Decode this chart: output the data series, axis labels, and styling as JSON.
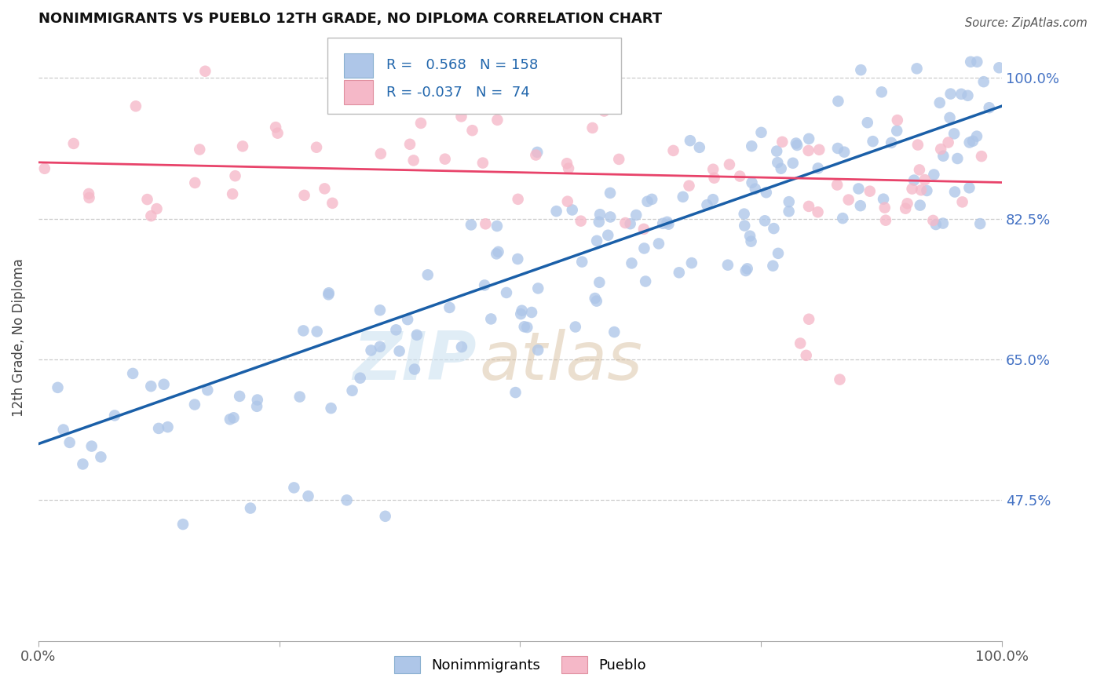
{
  "title": "NONIMMIGRANTS VS PUEBLO 12TH GRADE, NO DIPLOMA CORRELATION CHART",
  "source_text": "Source: ZipAtlas.com",
  "ylabel": "12th Grade, No Diploma",
  "legend_nonimm": "Nonimmigrants",
  "legend_pueblo": "Pueblo",
  "r_nonimm": 0.568,
  "n_nonimm": 158,
  "r_pueblo": -0.037,
  "n_pueblo": 74,
  "blue_fill": "#aec6e8",
  "pink_fill": "#f5b8c8",
  "blue_line": "#1a5fa8",
  "pink_line": "#e8436a",
  "grid_color": "#cccccc",
  "right_tick_color": "#4472c4",
  "xlim": [
    0,
    1
  ],
  "ylim": [
    0.3,
    1.055
  ],
  "yticks": [
    0.475,
    0.65,
    0.825,
    1.0
  ],
  "ytick_labels": [
    "47.5%",
    "65.0%",
    "82.5%",
    "100.0%"
  ],
  "xticks": [
    0.0,
    0.25,
    0.5,
    0.75,
    1.0
  ],
  "xtick_labels": [
    "0.0%",
    "",
    "",
    "",
    "100.0%"
  ],
  "seed": 12,
  "blue_line_x0": 0.0,
  "blue_line_y0": 0.545,
  "blue_line_x1": 1.0,
  "blue_line_y1": 0.965,
  "pink_line_x0": 0.0,
  "pink_line_y0": 0.895,
  "pink_line_x1": 1.0,
  "pink_line_y1": 0.87
}
